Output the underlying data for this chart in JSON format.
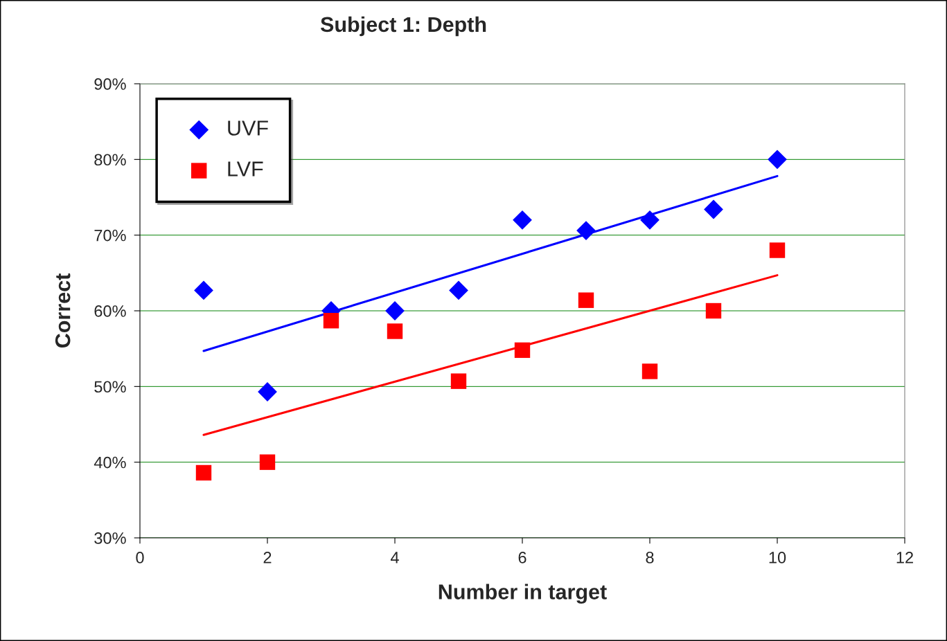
{
  "chart_data": {
    "type": "scatter",
    "title": "Subject 1: Depth",
    "xlabel": "Number in target",
    "ylabel": "Correct",
    "xlim": [
      0,
      12
    ],
    "xticks": [
      0,
      2,
      4,
      6,
      8,
      10,
      12
    ],
    "ylim": [
      30,
      90
    ],
    "yticks": [
      {
        "value": 30,
        "label": "30%"
      },
      {
        "value": 40,
        "label": "40%"
      },
      {
        "value": 50,
        "label": "50%"
      },
      {
        "value": 60,
        "label": "60%"
      },
      {
        "value": 70,
        "label": "70%"
      },
      {
        "value": 80,
        "label": "80%"
      },
      {
        "value": 90,
        "label": "90%"
      }
    ],
    "grid": "y",
    "legend": "top left",
    "series": [
      {
        "name": "UVF",
        "marker": "diamond",
        "color": "#0000ff",
        "x": [
          1,
          2,
          3,
          4,
          5,
          6,
          7,
          8,
          9,
          10
        ],
        "values": [
          62.7,
          49.3,
          60.0,
          60.0,
          62.7,
          72.0,
          70.6,
          72.0,
          73.4,
          80.0
        ]
      },
      {
        "name": "LVF",
        "marker": "square",
        "color": "#ff0000",
        "x": [
          1,
          2,
          3,
          4,
          5,
          6,
          7,
          8,
          9,
          10
        ],
        "values": [
          38.6,
          40.0,
          58.7,
          57.3,
          50.7,
          54.8,
          61.4,
          52.0,
          60.0,
          68.0
        ]
      },
      {
        "type": "line",
        "marker": "none",
        "color": "#0000ff",
        "x": [
          1,
          10
        ],
        "values": [
          54.7,
          77.8
        ]
      },
      {
        "type": "line",
        "marker": "none",
        "color": "#ff0000",
        "x": [
          1,
          10
        ],
        "values": [
          43.6,
          64.7
        ]
      }
    ]
  }
}
